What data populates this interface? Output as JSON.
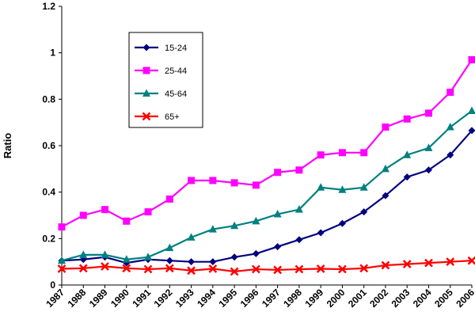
{
  "chart_data": {
    "type": "line",
    "title": "",
    "xlabel": "",
    "ylabel": "Ratio",
    "ylim": [
      0,
      1.2
    ],
    "yticks": [
      "0",
      "0.2",
      "0.4",
      "0.6",
      "0.8",
      "1",
      "1.2"
    ],
    "grid": false,
    "legend_position": "top-left",
    "x": [
      "1987",
      "1988",
      "1989",
      "1990",
      "1991",
      "1992",
      "1993",
      "1994",
      "1995",
      "1996",
      "1997",
      "1998",
      "1999",
      "2000",
      "2001",
      "2002",
      "2003",
      "2004",
      "2005",
      "2006"
    ],
    "series": [
      {
        "name": "15-24",
        "color": "#000080",
        "marker": "diamond",
        "values": [
          0.105,
          0.11,
          0.12,
          0.095,
          0.11,
          0.105,
          0.1,
          0.1,
          0.12,
          0.135,
          0.165,
          0.195,
          0.225,
          0.265,
          0.315,
          0.385,
          0.465,
          0.495,
          0.56,
          0.665
        ]
      },
      {
        "name": "25-44",
        "color": "#FF00FF",
        "marker": "square",
        "values": [
          0.25,
          0.3,
          0.325,
          0.275,
          0.315,
          0.37,
          0.45,
          0.45,
          0.44,
          0.43,
          0.485,
          0.495,
          0.56,
          0.57,
          0.57,
          0.68,
          0.715,
          0.74,
          0.83,
          0.97
        ]
      },
      {
        "name": "45-64",
        "color": "#008080",
        "marker": "triangle",
        "values": [
          0.105,
          0.13,
          0.13,
          0.11,
          0.12,
          0.16,
          0.205,
          0.24,
          0.255,
          0.275,
          0.305,
          0.325,
          0.42,
          0.41,
          0.42,
          0.5,
          0.56,
          0.59,
          0.68,
          0.75
        ]
      },
      {
        "name": "65+",
        "color": "#FF0000",
        "marker": "cross",
        "values": [
          0.07,
          0.072,
          0.08,
          0.072,
          0.068,
          0.072,
          0.062,
          0.07,
          0.058,
          0.068,
          0.065,
          0.068,
          0.07,
          0.068,
          0.072,
          0.085,
          0.09,
          0.095,
          0.1,
          0.105
        ]
      }
    ]
  }
}
